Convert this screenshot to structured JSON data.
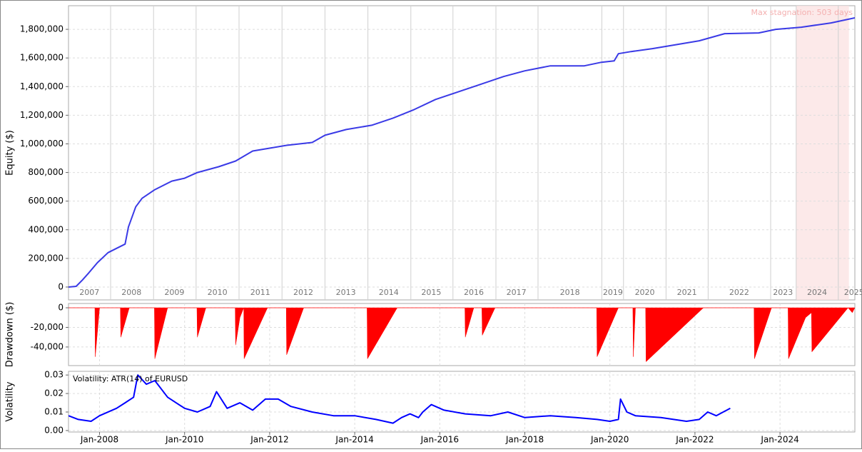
{
  "chart_data": [
    {
      "type": "line",
      "y_label": "Equity ($)",
      "color": "#3a3ae6",
      "grid": true,
      "xlim": [
        2007.27,
        2025.76
      ],
      "ylim": [
        -90000,
        1965000
      ],
      "yticks": [
        0,
        {
          "value": 200000,
          "label": "200,000"
        },
        {
          "value": 400000,
          "label": "400,000"
        },
        {
          "value": 600000,
          "label": "600,000"
        },
        {
          "value": 800000,
          "label": "800,000"
        },
        {
          "value": 1000000,
          "label": "1,000,000"
        },
        {
          "value": 1200000,
          "label": "1,200,000"
        },
        {
          "value": 1400000,
          "label": "1,400,000"
        },
        {
          "value": 1600000,
          "label": "1,600,000"
        },
        {
          "value": 1800000,
          "label": "1,800,000"
        }
      ],
      "year_labels": [
        {
          "value": 2007.76,
          "label": "2007"
        },
        {
          "value": 2008.75,
          "label": "2008"
        },
        {
          "value": 2009.76,
          "label": "2009"
        },
        {
          "value": 2010.77,
          "label": "2010"
        },
        {
          "value": 2011.78,
          "label": "2011"
        },
        {
          "value": 2012.79,
          "label": "2012"
        },
        {
          "value": 2013.79,
          "label": "2013"
        },
        {
          "value": 2014.8,
          "label": "2014"
        },
        {
          "value": 2015.8,
          "label": "2015"
        },
        {
          "value": 2016.8,
          "label": "2016"
        },
        {
          "value": 2017.8,
          "label": "2017"
        },
        {
          "value": 2019.06,
          "label": "2018"
        },
        {
          "value": 2020.07,
          "label": "2019"
        },
        {
          "value": 2020.82,
          "label": "2020"
        },
        {
          "value": 2021.81,
          "label": "2021"
        },
        {
          "value": 2023.04,
          "label": "2022"
        },
        {
          "value": 2024.07,
          "label": "2023"
        },
        {
          "value": 2024.87,
          "label": "2024"
        },
        {
          "value": 2025.74,
          "label": "2025"
        }
      ],
      "year_lines": [
        2008.26,
        2009.27,
        2010.27,
        2011.28,
        2012.29,
        2013.3,
        2014.31,
        2015.32,
        2016.31,
        2017.32,
        2018.31,
        2019.81,
        2020.32,
        2021.32,
        2022.31,
        2023.78,
        2024.38,
        2025.37
      ],
      "stagnation": {
        "label": "Max stagnation: 503 days",
        "range": [
          2024.38,
          2025.62
        ]
      },
      "x": [
        2007.27,
        2007.45,
        2007.6,
        2007.75,
        2007.95,
        2008.2,
        2008.4,
        2008.6,
        2008.68,
        2008.85,
        2009.0,
        2009.3,
        2009.7,
        2010.0,
        2010.3,
        2010.8,
        2011.2,
        2011.6,
        2012.0,
        2012.4,
        2013.0,
        2013.3,
        2013.8,
        2014.4,
        2014.9,
        2015.4,
        2015.9,
        2016.4,
        2016.9,
        2017.5,
        2018.0,
        2018.6,
        2019.4,
        2019.8,
        2020.1,
        2020.2,
        2020.5,
        2021.0,
        2021.6,
        2022.1,
        2022.7,
        2023.5,
        2023.9,
        2024.5,
        2025.2,
        2025.76
      ],
      "values": [
        0,
        5000,
        50000,
        100000,
        170000,
        240000,
        270000,
        300000,
        420000,
        560000,
        620000,
        680000,
        740000,
        760000,
        800000,
        840000,
        880000,
        950000,
        970000,
        990000,
        1010000,
        1060000,
        1100000,
        1130000,
        1180000,
        1240000,
        1310000,
        1360000,
        1410000,
        1470000,
        1510000,
        1545000,
        1545000,
        1570000,
        1580000,
        1630000,
        1645000,
        1665000,
        1695000,
        1720000,
        1770000,
        1775000,
        1800000,
        1815000,
        1845000,
        1880000
      ]
    },
    {
      "type": "area",
      "y_label": "Drawdown ($)",
      "color": "#ff0000",
      "grid": true,
      "xlim": [
        2007.27,
        2025.76
      ],
      "ylim": [
        -59000,
        4400
      ],
      "yticks": [
        0,
        {
          "value": -20000,
          "label": "-20,000"
        },
        {
          "value": -40000,
          "label": "-40,000"
        }
      ],
      "xgrid": [
        2008,
        2010,
        2012,
        2014,
        2016,
        2018,
        2020,
        2022,
        2024
      ],
      "x": [
        2007.27,
        2007.89,
        2007.9,
        2008.0,
        2008.49,
        2008.5,
        2008.7,
        2009.29,
        2009.3,
        2009.6,
        2010.29,
        2010.3,
        2010.5,
        2011.19,
        2011.2,
        2011.3,
        2011.39,
        2011.4,
        2011.95,
        2012.39,
        2012.4,
        2012.8,
        2014.29,
        2014.3,
        2015.0,
        2016.59,
        2016.6,
        2016.8,
        2016.99,
        2017.0,
        2017.3,
        2019.69,
        2019.7,
        2020.2,
        2020.54,
        2020.55,
        2020.6,
        2020.84,
        2020.85,
        2022.2,
        2023.39,
        2023.4,
        2023.8,
        2024.19,
        2024.2,
        2024.6,
        2024.74,
        2024.75,
        2025.6,
        2025.7,
        2025.76
      ],
      "values": [
        0,
        0,
        -50000,
        0,
        0,
        -30000,
        0,
        0,
        -52000,
        0,
        0,
        -30000,
        0,
        0,
        -38000,
        -10000,
        0,
        -52000,
        0,
        0,
        -48000,
        0,
        0,
        -52000,
        0,
        0,
        -30000,
        0,
        0,
        -28000,
        0,
        0,
        -50000,
        0,
        0,
        -50000,
        0,
        0,
        -55000,
        0,
        0,
        -52000,
        0,
        0,
        -52000,
        -10000,
        -5000,
        -45000,
        0,
        -5000,
        0
      ]
    },
    {
      "type": "line",
      "title": "Volatility: ATR(14) of EURUSD",
      "y_label": "Volatility",
      "color": "#0000ff",
      "grid": true,
      "xlim": [
        2007.27,
        2025.76
      ],
      "ylim": [
        -0.0008,
        0.032
      ],
      "yticks": [
        {
          "value": 0,
          "label": "0.00"
        },
        {
          "value": 0.01,
          "label": "0.01"
        },
        {
          "value": 0.02,
          "label": "0.02"
        },
        {
          "value": 0.03,
          "label": "0.03"
        }
      ],
      "xticks": [
        {
          "value": 2008,
          "label": "Jan-2008"
        },
        {
          "value": 2010,
          "label": "Jan-2010"
        },
        {
          "value": 2012,
          "label": "Jan-2012"
        },
        {
          "value": 2014,
          "label": "Jan-2014"
        },
        {
          "value": 2016,
          "label": "Jan-2016"
        },
        {
          "value": 2018,
          "label": "Jan-2018"
        },
        {
          "value": 2020,
          "label": "Jan-2020"
        },
        {
          "value": 2022,
          "label": "Jan-2022"
        },
        {
          "value": 2024,
          "label": "Jan-2024"
        }
      ],
      "x": [
        2007.27,
        2007.5,
        2007.8,
        2008.0,
        2008.4,
        2008.6,
        2008.8,
        2008.9,
        2009.1,
        2009.3,
        2009.6,
        2010.0,
        2010.3,
        2010.6,
        2010.75,
        2011.0,
        2011.3,
        2011.6,
        2011.9,
        2012.2,
        2012.5,
        2013.0,
        2013.5,
        2014.0,
        2014.5,
        2014.9,
        2015.1,
        2015.3,
        2015.5,
        2015.6,
        2015.8,
        2016.1,
        2016.6,
        2017.2,
        2017.6,
        2018.0,
        2018.6,
        2019.2,
        2019.7,
        2020.0,
        2020.2,
        2020.25,
        2020.4,
        2020.6,
        2021.2,
        2021.8,
        2022.1,
        2022.3,
        2022.5,
        2022.83
      ],
      "values": [
        0.008,
        0.006,
        0.005,
        0.008,
        0.012,
        0.015,
        0.018,
        0.03,
        0.025,
        0.027,
        0.018,
        0.012,
        0.01,
        0.013,
        0.021,
        0.012,
        0.015,
        0.011,
        0.017,
        0.017,
        0.013,
        0.01,
        0.008,
        0.008,
        0.006,
        0.004,
        0.007,
        0.009,
        0.007,
        0.01,
        0.014,
        0.011,
        0.009,
        0.008,
        0.01,
        0.007,
        0.008,
        0.007,
        0.006,
        0.005,
        0.006,
        0.017,
        0.01,
        0.008,
        0.007,
        0.005,
        0.006,
        0.01,
        0.008,
        0.012
      ]
    }
  ]
}
